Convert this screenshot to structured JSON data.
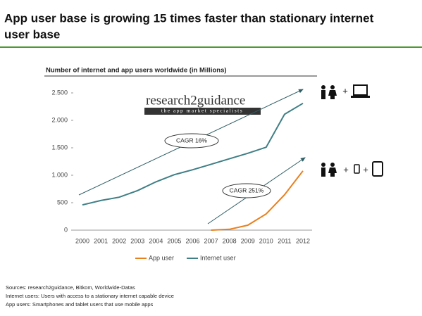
{
  "header": {
    "title_lines": [
      "App user base is growing 15 times faster than stationary internet",
      "user base"
    ]
  },
  "chart_data": {
    "type": "line",
    "title": "Number of internet and app users worldwide (in Millions)",
    "categories": [
      "2000",
      "2001",
      "2002",
      "2003",
      "2004",
      "2005",
      "2006",
      "2007",
      "2008",
      "2009",
      "2010",
      "2011",
      "2012"
    ],
    "series": [
      {
        "name": "App user",
        "color": "#e8801e",
        "values": [
          null,
          null,
          null,
          null,
          null,
          null,
          null,
          0,
          15,
          90,
          295,
          645,
          1080
        ]
      },
      {
        "name": "Internet user",
        "color": "#3f7f86",
        "values": [
          460,
          540,
          600,
          720,
          880,
          1010,
          1100,
          1200,
          1300,
          1400,
          1510,
          2110,
          2310
        ]
      }
    ],
    "ylim": [
      0,
      2500
    ],
    "yticks": [
      0,
      500,
      {
        "value": 1000,
        "label": "1.000"
      },
      {
        "value": 1500,
        "label": "1.500"
      },
      {
        "value": 2000,
        "label": "2.000"
      },
      {
        "value": 2500,
        "label": "2.500"
      }
    ],
    "annotations": [
      "CAGR 16%",
      "CAGR 251%"
    ],
    "logo": [
      "research2guidance",
      "the app market specialists"
    ],
    "icon_signs": [
      "+",
      "+",
      "+"
    ],
    "legend": "bottom"
  },
  "footnotes": [
    "Sources: research2guidance, Bitkom, Worldwide-Datas",
    "Internet users: Users with access to a stationary internet capable device",
    "App users: Smartphones and tablet users that use mobile apps"
  ]
}
